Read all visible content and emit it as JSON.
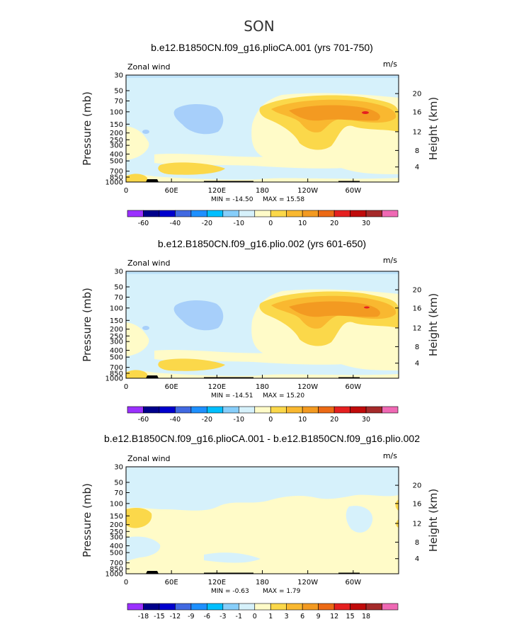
{
  "season": "SON",
  "chart_data": [
    {
      "type": "heatmap",
      "title": "b.e12.B1850CN.f09_g16.plioCA.001 (yrs 701-750)",
      "variable": "Zonal wind",
      "units": "m/s",
      "ylabel": "Pressure (mb)",
      "y2label": "Height (km)",
      "xticks": [
        "0",
        "60E",
        "120E",
        "180",
        "120W",
        "60W"
      ],
      "yticks": [
        "30",
        "50",
        "70",
        "100",
        "150",
        "200",
        "250",
        "300",
        "400",
        "500",
        "700",
        "850",
        "1000"
      ],
      "y2ticks": [
        "20",
        "16",
        "12",
        "8",
        "4"
      ],
      "min_label": "MIN = -14.50",
      "max_label": "MAX = 15.58",
      "colorbar_labels": [
        "-60",
        "-40",
        "-20",
        "-10",
        "0",
        "10",
        "20",
        "30"
      ],
      "colorbar_colors": [
        "#9b30ff",
        "#00008b",
        "#0000cd",
        "#4169e1",
        "#1e90ff",
        "#00bfff",
        "#87cefa",
        "#d6f1fb",
        "#fffbc8",
        "#fbd84a",
        "#f9b830",
        "#f39a21",
        "#ec6a15",
        "#e52020",
        "#c00b0b",
        "#a52a2a",
        "#ef69b4"
      ],
      "approx_max_zonal_wind_ms": 15.58,
      "approx_min_zonal_wind_ms": -14.5
    },
    {
      "type": "heatmap",
      "title": "b.e12.B1850CN.f09_g16.plio.002 (yrs 601-650)",
      "variable": "Zonal wind",
      "units": "m/s",
      "ylabel": "Pressure (mb)",
      "y2label": "Height (km)",
      "xticks": [
        "0",
        "60E",
        "120E",
        "180",
        "120W",
        "60W"
      ],
      "yticks": [
        "30",
        "50",
        "70",
        "100",
        "150",
        "200",
        "250",
        "300",
        "400",
        "500",
        "700",
        "850",
        "1000"
      ],
      "y2ticks": [
        "20",
        "16",
        "12",
        "8",
        "4"
      ],
      "min_label": "MIN = -14.51",
      "max_label": "MAX = 15.20",
      "colorbar_labels": [
        "-60",
        "-40",
        "-20",
        "-10",
        "0",
        "10",
        "20",
        "30"
      ],
      "colorbar_colors": [
        "#9b30ff",
        "#00008b",
        "#0000cd",
        "#4169e1",
        "#1e90ff",
        "#00bfff",
        "#87cefa",
        "#d6f1fb",
        "#fffbc8",
        "#fbd84a",
        "#f9b830",
        "#f39a21",
        "#ec6a15",
        "#e52020",
        "#c00b0b",
        "#a52a2a",
        "#ef69b4"
      ],
      "approx_max_zonal_wind_ms": 15.2,
      "approx_min_zonal_wind_ms": -14.51
    },
    {
      "type": "heatmap",
      "title": "b.e12.B1850CN.f09_g16.plioCA.001 - b.e12.B1850CN.f09_g16.plio.002",
      "variable": "Zonal wind",
      "units": "m/s",
      "ylabel": "Pressure (mb)",
      "y2label": "Height (km)",
      "xticks": [
        "0",
        "60E",
        "120E",
        "180",
        "120W",
        "60W"
      ],
      "yticks": [
        "30",
        "50",
        "70",
        "100",
        "150",
        "200",
        "250",
        "300",
        "400",
        "500",
        "700",
        "850",
        "1000"
      ],
      "y2ticks": [
        "20",
        "16",
        "12",
        "8",
        "4"
      ],
      "min_label": "MIN = -0.63",
      "max_label": "MAX = 1.79",
      "colorbar_labels": [
        "-18",
        "-15",
        "-12",
        "-9",
        "-6",
        "-3",
        "-1",
        "0",
        "1",
        "3",
        "6",
        "9",
        "12",
        "15",
        "18"
      ],
      "colorbar_colors": [
        "#9b30ff",
        "#00008b",
        "#0000cd",
        "#4169e1",
        "#1e90ff",
        "#00bfff",
        "#87cefa",
        "#d6f1fb",
        "#fffbc8",
        "#fbd84a",
        "#f9b830",
        "#f39a21",
        "#ec6a15",
        "#e52020",
        "#c00b0b",
        "#a52a2a",
        "#ef69b4"
      ],
      "approx_max_zonal_wind_ms": 1.79,
      "approx_min_zonal_wind_ms": -0.63
    }
  ]
}
